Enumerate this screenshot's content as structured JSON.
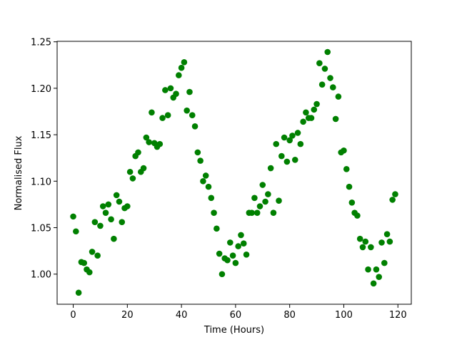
{
  "chart_data": {
    "type": "scatter",
    "xlabel": "Time (Hours)",
    "ylabel": "Normalised Flux",
    "color": "green",
    "grid": false,
    "x": [
      0,
      1,
      2,
      3,
      4,
      5,
      6,
      7,
      8,
      9,
      10,
      11,
      12,
      13,
      14,
      15,
      16,
      17,
      18,
      19,
      20,
      21,
      22,
      23,
      24,
      25,
      26,
      27,
      28,
      29,
      30,
      31,
      32,
      33,
      34,
      35,
      36,
      37,
      38,
      39,
      40,
      41,
      42,
      43,
      44,
      45,
      46,
      47,
      48,
      49,
      50,
      51,
      52,
      53,
      54,
      55,
      56,
      57,
      58,
      59,
      60,
      61,
      62,
      63,
      64,
      65,
      66,
      67,
      68,
      69,
      70,
      71,
      72,
      73,
      74,
      75,
      76,
      77,
      78,
      79,
      80,
      81,
      82,
      83,
      84,
      85,
      86,
      87,
      88,
      89,
      90,
      91,
      92,
      93,
      94,
      95,
      96,
      97,
      98,
      99,
      100,
      101,
      102,
      103,
      104,
      105,
      106,
      107,
      108,
      109,
      110,
      111,
      112,
      113,
      114,
      115,
      116,
      117,
      118,
      119
    ],
    "values": [
      1.062,
      1.046,
      0.98,
      1.013,
      1.012,
      1.005,
      1.002,
      1.024,
      1.056,
      1.02,
      1.052,
      1.073,
      1.066,
      1.075,
      1.059,
      1.038,
      1.085,
      1.078,
      1.056,
      1.071,
      1.073,
      1.11,
      1.103,
      1.127,
      1.131,
      1.11,
      1.114,
      1.147,
      1.142,
      1.174,
      1.141,
      1.137,
      1.14,
      1.168,
      1.198,
      1.171,
      1.2,
      1.19,
      1.194,
      1.214,
      1.222,
      1.228,
      1.176,
      1.196,
      1.171,
      1.159,
      1.131,
      1.122,
      1.1,
      1.106,
      1.094,
      1.082,
      1.066,
      1.049,
      1.022,
      1.0,
      1.017,
      1.015,
      1.034,
      1.02,
      1.012,
      1.03,
      1.042,
      1.033,
      1.021,
      1.066,
      1.066,
      1.082,
      1.066,
      1.073,
      1.096,
      1.078,
      1.086,
      1.114,
      1.066,
      1.14,
      1.079,
      1.127,
      1.147,
      1.121,
      1.144,
      1.149,
      1.123,
      1.152,
      1.14,
      1.164,
      1.174,
      1.168,
      1.168,
      1.177,
      1.183,
      1.227,
      1.204,
      1.221,
      1.239,
      1.211,
      1.201,
      1.167,
      1.191,
      1.131,
      1.133,
      1.113,
      1.094,
      1.077,
      1.066,
      1.063,
      1.038,
      1.029,
      1.035,
      1.005,
      1.029,
      0.99,
      1.005,
      0.997,
      1.034,
      1.012,
      1.043,
      1.035,
      1.08,
      1.086
    ],
    "xlim": [
      -5.95,
      124.95
    ],
    "ylim": [
      0.9676,
      1.2505
    ],
    "xticks": [
      0,
      20,
      40,
      60,
      80,
      100,
      120
    ],
    "yticks": [
      {
        "value": 1,
        "label": "1.00"
      },
      1.05,
      {
        "value": 1.1,
        "label": "1.10"
      },
      1.15,
      {
        "value": 1.2,
        "label": "1.20"
      },
      1.25
    ]
  }
}
